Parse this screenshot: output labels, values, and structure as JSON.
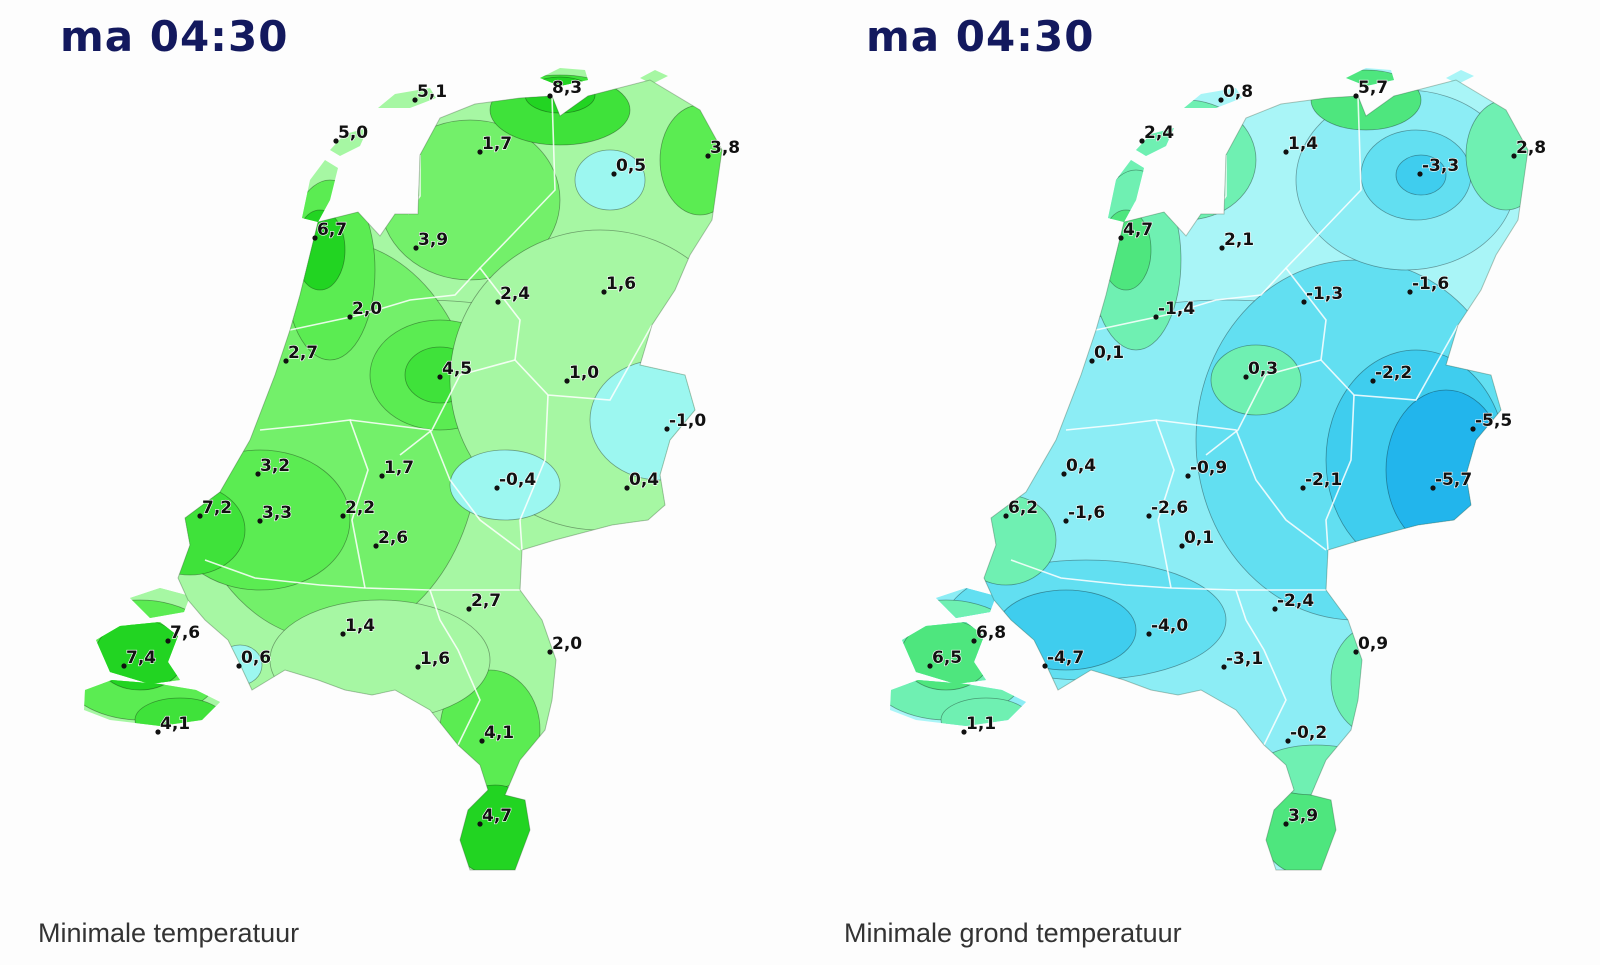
{
  "maps": [
    {
      "time": "ma 04:30",
      "caption": "Minimale temperatuur",
      "palette": "green",
      "stations": [
        {
          "label": "5,1"
        },
        {
          "label": "8,3"
        },
        {
          "label": "5,0"
        },
        {
          "label": "1,7"
        },
        {
          "label": "3,8"
        },
        {
          "label": "0,5"
        },
        {
          "label": "6,7"
        },
        {
          "label": "3,9"
        },
        {
          "label": "2,4"
        },
        {
          "label": "1,6"
        },
        {
          "label": "2,0"
        },
        {
          "label": "2,7"
        },
        {
          "label": "4,5"
        },
        {
          "label": "1,0"
        },
        {
          "label": "-1,0"
        },
        {
          "label": "3,2"
        },
        {
          "label": "1,7"
        },
        {
          "label": "-0,4"
        },
        {
          "label": "0,4"
        },
        {
          "label": "7,2"
        },
        {
          "label": "3,3"
        },
        {
          "label": "2,2"
        },
        {
          "label": "2,6"
        },
        {
          "label": "2,7"
        },
        {
          "label": "1,4"
        },
        {
          "label": "7,6"
        },
        {
          "label": "2,0"
        },
        {
          "label": "7,4"
        },
        {
          "label": "0,6"
        },
        {
          "label": "1,6"
        },
        {
          "label": "4,1"
        },
        {
          "label": "4,1"
        },
        {
          "label": "4,7"
        }
      ]
    },
    {
      "time": "ma 04:30",
      "caption": "Minimale grond temperatuur",
      "palette": "blue",
      "stations": [
        {
          "label": "0,8"
        },
        {
          "label": "5,7"
        },
        {
          "label": "2,4"
        },
        {
          "label": "1,4"
        },
        {
          "label": "2,8"
        },
        {
          "label": "-3,3"
        },
        {
          "label": "4,7"
        },
        {
          "label": "2,1"
        },
        {
          "label": "-1,3"
        },
        {
          "label": "-1,6"
        },
        {
          "label": "-1,4"
        },
        {
          "label": "0,1"
        },
        {
          "label": "0,3"
        },
        {
          "label": "-2,2"
        },
        {
          "label": "-5,5"
        },
        {
          "label": "0,4"
        },
        {
          "label": "-0,9"
        },
        {
          "label": "-2,1"
        },
        {
          "label": "-5,7"
        },
        {
          "label": "6,2"
        },
        {
          "label": "-1,6"
        },
        {
          "label": "-2,6"
        },
        {
          "label": "0,1"
        },
        {
          "label": "-2,4"
        },
        {
          "label": "-4,0"
        },
        {
          "label": "6,8"
        },
        {
          "label": "0,9"
        },
        {
          "label": "6,5"
        },
        {
          "label": "-4,7"
        },
        {
          "label": "-3,1"
        },
        {
          "label": "1,1"
        },
        {
          "label": "-0,2"
        },
        {
          "label": "3,9"
        }
      ]
    }
  ],
  "colors": {
    "time_label": "#13195e",
    "green_scale": [
      "#a6f7a3",
      "#90f58a",
      "#73f06a",
      "#5bec52",
      "#3fe23a",
      "#22d422"
    ],
    "blue_scale": [
      "#a9f5f7",
      "#8cedf5",
      "#62dff1",
      "#3fcdee",
      "#22b5ec",
      "#6ff0b2",
      "#4ee67e"
    ]
  }
}
